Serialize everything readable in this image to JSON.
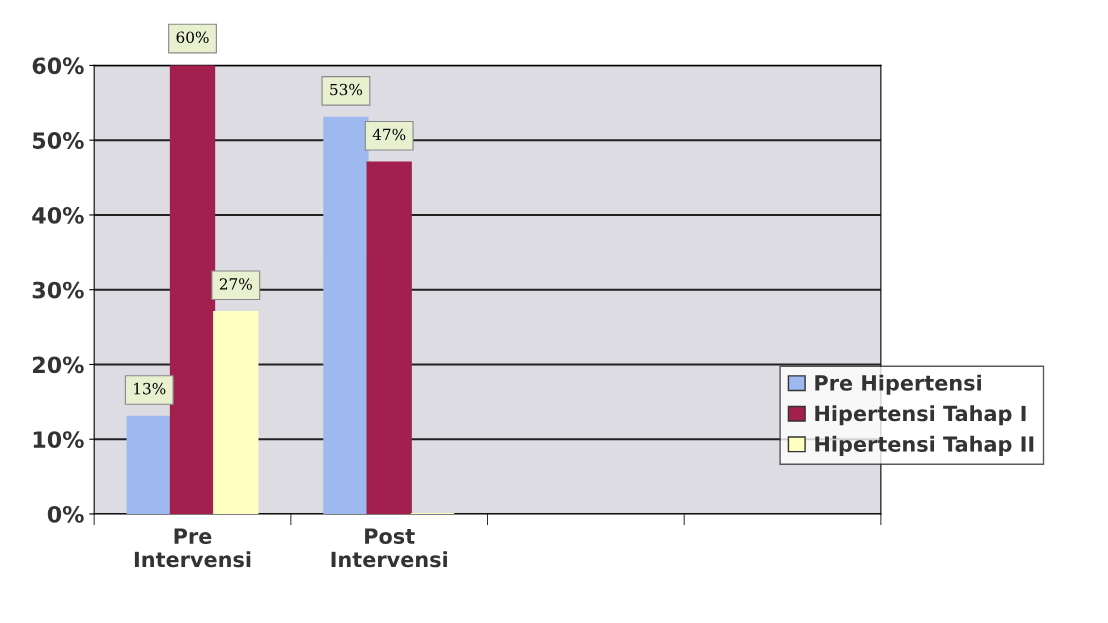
{
  "chart_data": {
    "type": "bar",
    "categories": [
      "Pre\nIntervensi",
      "Post\nIntervensi",
      null,
      null
    ],
    "series": [
      {
        "name": "Pre Hipertensi",
        "color": "#9db9f0",
        "values": [
          13,
          53,
          null,
          null
        ],
        "value_labels": [
          "13%",
          "53%",
          null,
          null
        ]
      },
      {
        "name": "Hipertensi Tahap I",
        "color": "#a3204e",
        "values": [
          60,
          47,
          null,
          null
        ],
        "value_labels": [
          "60%",
          "47%",
          null,
          null
        ]
      },
      {
        "name": "Hipertensi Tahap II",
        "color": "#ffffc2",
        "values": [
          27,
          0,
          null,
          null
        ],
        "value_labels": [
          "27%",
          null,
          null,
          null
        ]
      }
    ],
    "ylim": [
      0,
      60
    ],
    "yticks": [
      {
        "value": 0,
        "label": "0%"
      },
      {
        "value": 10,
        "label": "10%"
      },
      {
        "value": 20,
        "label": "20%"
      },
      {
        "value": 30,
        "label": "30%"
      },
      {
        "value": 40,
        "label": "40%"
      },
      {
        "value": 50,
        "label": "50%"
      },
      {
        "value": 60,
        "label": "60%"
      }
    ],
    "grid": "y",
    "legend": "right"
  }
}
